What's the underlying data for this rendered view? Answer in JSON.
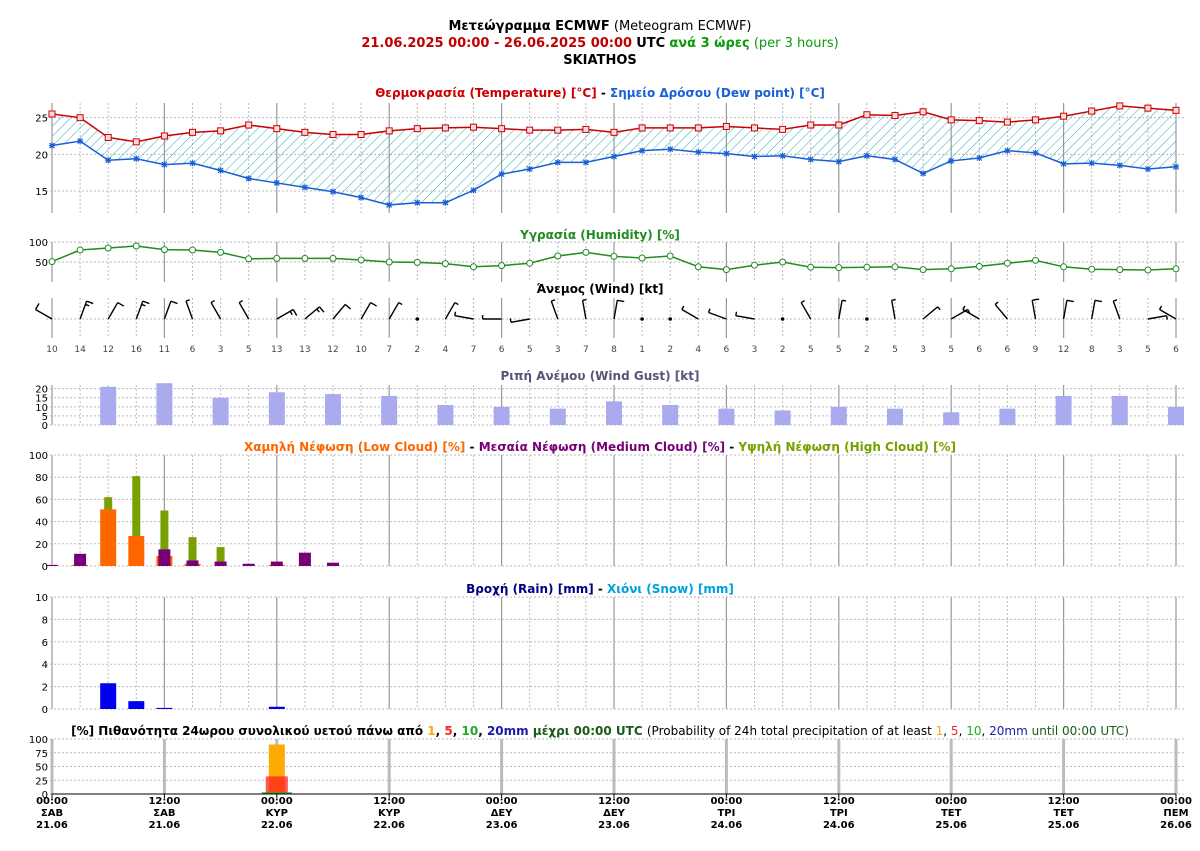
{
  "header": {
    "title_bold": "Μετεώγραμμα ECMWF",
    "title_normal": "(Meteogram ECMWF)",
    "range_start": "21.06.2025 00:00",
    "range_sep": " - ",
    "range_end": "26.06.2025 00:00",
    "utc": "UTC",
    "every": "ανά 3 ώρες",
    "per": "(per 3 hours)",
    "station": "SKIATHOS"
  },
  "panels": {
    "temp": {
      "title_gr": "Θερμοκρασία (Temperature) [°C]",
      "sep": " - ",
      "title_dew": "Σημείο Δρόσου (Dew point) [°C]"
    },
    "hum": {
      "title": "Υγρασία (Humidity) [%]"
    },
    "wind": {
      "title": "Άνεμος (Wind) [kt]"
    },
    "gust": {
      "title": "Ριπή Ανέμου (Wind Gust) [kt]"
    },
    "cloud": {
      "low": "Χαμηλή Νέφωση (Low Cloud) [%]",
      "med": "Μεσαία Νέφωση (Medium Cloud) [%]",
      "high": "Υψηλή Νέφωση (High Cloud) [%]",
      "sep": " - "
    },
    "rain": {
      "rain": "Βροχή (Rain) [mm]",
      "snow": "Χιόνι (Snow) [mm]",
      "sep": " - "
    },
    "prob": {
      "p1": "[%] Πιθανότητα 24ωρου συνολικού υετού πάνω από",
      "t1": "1",
      "t5": "5",
      "t10": "10",
      "t20": "20mm",
      "c": ", ",
      "gr_until": "μέχρι 00:00 UTC",
      "en1": "(Probability of 24h total precipitation of at least",
      "en_until": "until 00:00 UTC)"
    }
  },
  "colors": {
    "temp": "#cc0000",
    "dew": "#1a5fd6",
    "humidity": "#228b22",
    "gust": "#aaaaee",
    "low": "#ff6600",
    "med": "#770077",
    "high": "#77a000",
    "rain": "#0000ee",
    "snow": "#00a0e0",
    "p1": "#ffaa00",
    "p5": "#ff2020",
    "p10": "#22aa22",
    "p20": "#1a1aaa"
  },
  "chart_data": [
    {
      "type": "line",
      "name": "temperature_dewpoint",
      "ylim": [
        12,
        27
      ],
      "yticks": [
        15,
        20,
        25
      ],
      "series": [
        {
          "name": "Θερμοκρασία (Temperature) [°C]",
          "values": [
            25.5,
            25,
            22.3,
            21.7,
            22.5,
            23,
            23.2,
            24,
            23.5,
            23,
            22.7,
            22.7,
            23.2,
            23.5,
            23.6,
            23.7,
            23.5,
            23.3,
            23.3,
            23.4,
            23,
            23.6,
            23.6,
            23.6,
            23.8,
            23.6,
            23.4,
            24,
            24,
            25.4,
            25.3,
            25.8,
            24.7,
            24.6,
            24.4,
            24.7,
            25.2,
            25.9,
            26.6,
            26.3,
            26
          ]
        },
        {
          "name": "Σημείο Δρόσου (Dew point) [°C]",
          "values": [
            21.2,
            21.8,
            19.2,
            19.4,
            18.6,
            18.8,
            17.8,
            16.7,
            16.1,
            15.5,
            14.9,
            14.1,
            13.1,
            13.4,
            13.4,
            15.1,
            17.3,
            18,
            18.9,
            18.9,
            19.7,
            20.5,
            20.7,
            20.3,
            20.1,
            19.7,
            19.8,
            19.3,
            19,
            19.8,
            19.3,
            17.4,
            19.1,
            19.5,
            20.5,
            20.2,
            18.7,
            18.8,
            18.5,
            18,
            18.3
          ]
        }
      ]
    },
    {
      "type": "line",
      "name": "humidity",
      "ylim": [
        0,
        100
      ],
      "yticks": [
        50,
        100
      ],
      "series": [
        {
          "name": "Υγρασία (Humidity) [%]",
          "values": [
            51,
            80,
            85,
            90,
            81,
            80,
            74,
            58,
            59,
            59,
            59,
            55,
            50,
            49,
            46,
            38,
            41,
            47,
            65,
            74,
            64,
            60,
            65,
            38,
            31,
            42,
            50,
            37,
            36,
            37,
            38,
            31,
            33,
            39,
            47,
            54,
            38,
            32,
            31,
            30,
            33
          ]
        }
      ]
    },
    {
      "type": "table",
      "name": "wind",
      "speed": [
        10,
        14,
        12,
        16,
        11,
        6,
        3,
        5,
        13,
        13,
        12,
        10,
        7,
        2,
        4,
        7,
        6,
        5,
        3,
        7,
        8,
        1,
        2,
        4,
        6,
        3,
        2,
        5,
        5,
        2,
        5,
        3,
        5,
        6,
        6,
        9,
        12,
        8,
        3,
        5,
        6
      ],
      "direction_deg": [
        300,
        20,
        30,
        20,
        20,
        340,
        330,
        330,
        60,
        50,
        40,
        30,
        30,
        0,
        30,
        280,
        270,
        260,
        340,
        350,
        10,
        40,
        50,
        300,
        290,
        280,
        300,
        330,
        10,
        310,
        350,
        50,
        60,
        300,
        320,
        350,
        10,
        10,
        340,
        80,
        300
      ]
    },
    {
      "type": "bar",
      "name": "wind_gust",
      "ylim": [
        0,
        22
      ],
      "yticks": [
        0,
        5,
        10,
        15,
        20
      ],
      "series": [
        {
          "name": "Ριπή Ανέμου (Wind Gust) [kt]",
          "values": [
            null,
            null,
            21,
            null,
            23,
            null,
            15,
            null,
            18,
            null,
            17,
            null,
            16,
            null,
            11,
            null,
            10,
            null,
            9,
            null,
            13,
            null,
            11,
            null,
            9,
            null,
            8,
            null,
            10,
            null,
            9,
            null,
            7,
            null,
            9,
            null,
            16,
            null,
            16,
            null,
            10
          ]
        }
      ]
    },
    {
      "type": "bar",
      "name": "clouds",
      "ylim": [
        0,
        100
      ],
      "yticks": [
        0,
        20,
        40,
        60,
        80,
        100
      ],
      "series": [
        {
          "name": "Χαμηλή Νέφωση (Low Cloud) [%]",
          "values": [
            0,
            1,
            51,
            27,
            9,
            2,
            0,
            0,
            1,
            0,
            0,
            0,
            0,
            0,
            0,
            0,
            0,
            0,
            0,
            0,
            0,
            0,
            0,
            0,
            0,
            0,
            0,
            0,
            0,
            0,
            0,
            0,
            0,
            0,
            0,
            0,
            0,
            0,
            0,
            0,
            0
          ]
        },
        {
          "name": "Μεσαία Νέφωση (Medium Cloud) [%]",
          "values": [
            1,
            11,
            0,
            0,
            15,
            5,
            4,
            2,
            4,
            12,
            3,
            0,
            0,
            0,
            0,
            0,
            0,
            0,
            0,
            0,
            0,
            0,
            0,
            0,
            0,
            0,
            0,
            0,
            0,
            0,
            0,
            0,
            0,
            0,
            0,
            0,
            0,
            0,
            0,
            0,
            0
          ]
        },
        {
          "name": "Υψηλή Νέφωση (High Cloud) [%]",
          "values": [
            0,
            0,
            62,
            81,
            50,
            26,
            17,
            0,
            0,
            0,
            0,
            0,
            0,
            0,
            0,
            0,
            0,
            0,
            0,
            0,
            0,
            0,
            0,
            0,
            0,
            0,
            0,
            0,
            0,
            0,
            0,
            0,
            0,
            0,
            0,
            0,
            0,
            0,
            0,
            0,
            0
          ]
        }
      ]
    },
    {
      "type": "bar",
      "name": "precipitation",
      "ylim": [
        0,
        10
      ],
      "yticks": [
        0,
        2,
        4,
        6,
        8,
        10
      ],
      "series": [
        {
          "name": "Βροχή (Rain) [mm]",
          "values": [
            0,
            0,
            2.3,
            0.7,
            0.1,
            0,
            0,
            0,
            0.2,
            0,
            0,
            0,
            0,
            0,
            0,
            0,
            0,
            0,
            0,
            0,
            0,
            0,
            0,
            0,
            0,
            0,
            0,
            0,
            0,
            0,
            0,
            0,
            0,
            0,
            0,
            0,
            0,
            0,
            0,
            0,
            0
          ]
        },
        {
          "name": "Χιόνι (Snow) [mm]",
          "values": [
            0,
            0,
            0,
            0,
            0,
            0,
            0,
            0,
            0,
            0,
            0,
            0,
            0,
            0,
            0,
            0,
            0,
            0,
            0,
            0,
            0,
            0,
            0,
            0,
            0,
            0,
            0,
            0,
            0,
            0,
            0,
            0,
            0,
            0,
            0,
            0,
            0,
            0,
            0,
            0,
            0
          ]
        }
      ]
    },
    {
      "type": "bar",
      "name": "probability_24h",
      "ylim": [
        0,
        100
      ],
      "yticks": [
        0,
        25,
        50,
        75,
        100
      ],
      "categories": [
        "22.06 00:00"
      ],
      "series": [
        {
          "name": "1",
          "values": [
            90
          ]
        },
        {
          "name": "5",
          "values": [
            32
          ]
        },
        {
          "name": "10",
          "values": [
            3
          ]
        },
        {
          "name": "20mm",
          "values": [
            0
          ]
        }
      ]
    }
  ],
  "time_axis": {
    "ticks": [
      {
        "time": "00:00",
        "day": "ΣΑΒ",
        "date": "21.06"
      },
      {
        "time": "12:00",
        "day": "ΣΑΒ",
        "date": "21.06"
      },
      {
        "time": "00:00",
        "day": "ΚΥΡ",
        "date": "22.06"
      },
      {
        "time": "12:00",
        "day": "ΚΥΡ",
        "date": "22.06"
      },
      {
        "time": "00:00",
        "day": "ΔΕΥ",
        "date": "23.06"
      },
      {
        "time": "12:00",
        "day": "ΔΕΥ",
        "date": "23.06"
      },
      {
        "time": "00:00",
        "day": "ΤΡΙ",
        "date": "24.06"
      },
      {
        "time": "12:00",
        "day": "ΤΡΙ",
        "date": "24.06"
      },
      {
        "time": "00:00",
        "day": "ΤΕΤ",
        "date": "25.06"
      },
      {
        "time": "12:00",
        "day": "ΤΕΤ",
        "date": "25.06"
      },
      {
        "time": "00:00",
        "day": "ΠΕΜ",
        "date": "26.06"
      }
    ]
  }
}
